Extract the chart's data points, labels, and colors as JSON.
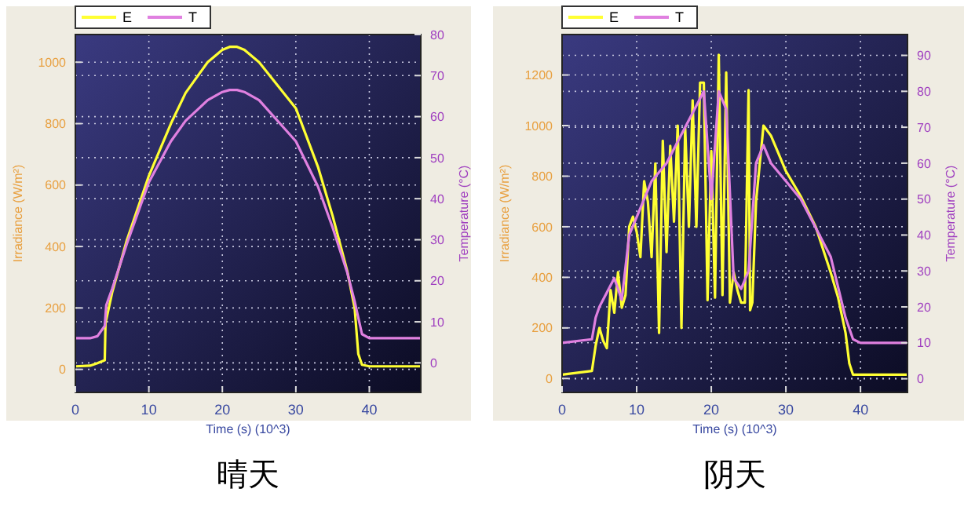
{
  "chart_data": [
    {
      "type": "line",
      "title": "晴天",
      "xlabel": "Time (s) (10^3)",
      "ylabel": "Irradiance (W/m²)",
      "y2label": "Temperature (°C)",
      "xlim": [
        0,
        47
      ],
      "xticks": [
        0,
        10,
        20,
        30,
        40
      ],
      "ylim": [
        -75,
        1090
      ],
      "yticks": [
        0,
        200,
        400,
        600,
        800,
        1000
      ],
      "y2lim": [
        -7.2,
        80
      ],
      "y2ticks": [
        0,
        10,
        20,
        30,
        40,
        50,
        60,
        70,
        80
      ],
      "grid": true,
      "legend": "top left",
      "line_style": "solid",
      "series": [
        {
          "name": "E",
          "color": "#ffff33",
          "x": [
            0,
            2,
            3,
            4,
            4.1,
            5,
            7,
            10,
            13,
            15,
            18,
            20,
            21,
            22,
            23,
            25,
            28,
            30,
            33,
            35,
            37,
            38,
            38.5,
            39,
            40,
            47
          ],
          "values": [
            10,
            12,
            20,
            30,
            150,
            250,
            420,
            630,
            800,
            900,
            1000,
            1040,
            1050,
            1050,
            1040,
            1000,
            910,
            850,
            660,
            500,
            320,
            200,
            50,
            15,
            10,
            10
          ]
        },
        {
          "name": "T",
          "color": "#e080e0",
          "axis": "y2",
          "x": [
            0,
            2,
            3,
            4,
            4.2,
            5,
            7,
            10,
            13,
            15,
            18,
            20,
            21,
            22,
            23,
            25,
            28,
            30,
            33,
            35,
            37,
            38,
            39,
            40,
            47
          ],
          "values": [
            6,
            6,
            6.5,
            9,
            14,
            18,
            29,
            44,
            54,
            59,
            64,
            66,
            66.5,
            66.5,
            66,
            64,
            58,
            54,
            43,
            33,
            22,
            15,
            7,
            6,
            6
          ]
        }
      ]
    },
    {
      "type": "line",
      "title": "阴天",
      "xlabel": "Time (s) (10^3)",
      "ylabel": "Irradiance (W/m²)",
      "y2label": "Temperature (°C)",
      "xlim": [
        0,
        46.3
      ],
      "xticks": [
        0,
        10,
        20,
        30,
        40
      ],
      "ylim": [
        -55,
        1360
      ],
      "yticks": [
        0,
        200,
        400,
        600,
        800,
        1000,
        1200
      ],
      "y2lim": [
        -3.8,
        95.8
      ],
      "y2ticks": [
        0,
        10,
        20,
        30,
        40,
        50,
        60,
        70,
        80,
        90
      ],
      "grid": true,
      "legend": "top left",
      "line_style": "solid",
      "series": [
        {
          "name": "E",
          "color": "#ffff33",
          "x": [
            0,
            4,
            4.5,
            5,
            5.5,
            6,
            6.5,
            7,
            7.5,
            8,
            8.5,
            9,
            9.5,
            10,
            10.5,
            11,
            11.5,
            12,
            12.5,
            13,
            13.5,
            14,
            14.5,
            15,
            15.5,
            16,
            16.5,
            17,
            17.5,
            18,
            18.5,
            19,
            19.5,
            20,
            20.5,
            21,
            21.5,
            22,
            22.5,
            23,
            23.5,
            24,
            24.5,
            25,
            25.2,
            25.5,
            26,
            26.5,
            27,
            28,
            29,
            30,
            32,
            34,
            36,
            37,
            38,
            38.5,
            39,
            46.3
          ],
          "values": [
            15,
            30,
            130,
            200,
            150,
            120,
            350,
            260,
            420,
            280,
            330,
            600,
            640,
            580,
            480,
            780,
            700,
            480,
            850,
            180,
            940,
            500,
            920,
            620,
            1000,
            200,
            990,
            600,
            1100,
            600,
            1170,
            1170,
            310,
            900,
            320,
            1280,
            330,
            1210,
            300,
            420,
            350,
            300,
            300,
            1140,
            270,
            300,
            700,
            850,
            1000,
            960,
            890,
            820,
            720,
            600,
            420,
            320,
            180,
            60,
            15,
            15
          ]
        },
        {
          "name": "T",
          "color": "#e080e0",
          "axis": "y2",
          "x": [
            0,
            4,
            4.5,
            5,
            6,
            7,
            8,
            9,
            10,
            12,
            14,
            16,
            18,
            19,
            20,
            21,
            22,
            23,
            24,
            25,
            26,
            27,
            28,
            30,
            32,
            34,
            36,
            38,
            39,
            40,
            46.3
          ],
          "values": [
            10,
            11,
            17,
            20,
            24,
            28,
            22,
            40,
            45,
            55,
            60,
            68,
            76,
            80,
            50,
            80,
            75,
            28,
            25,
            30,
            60,
            65,
            60,
            55,
            50,
            42,
            34,
            17,
            11,
            10,
            10
          ]
        }
      ]
    }
  ]
}
